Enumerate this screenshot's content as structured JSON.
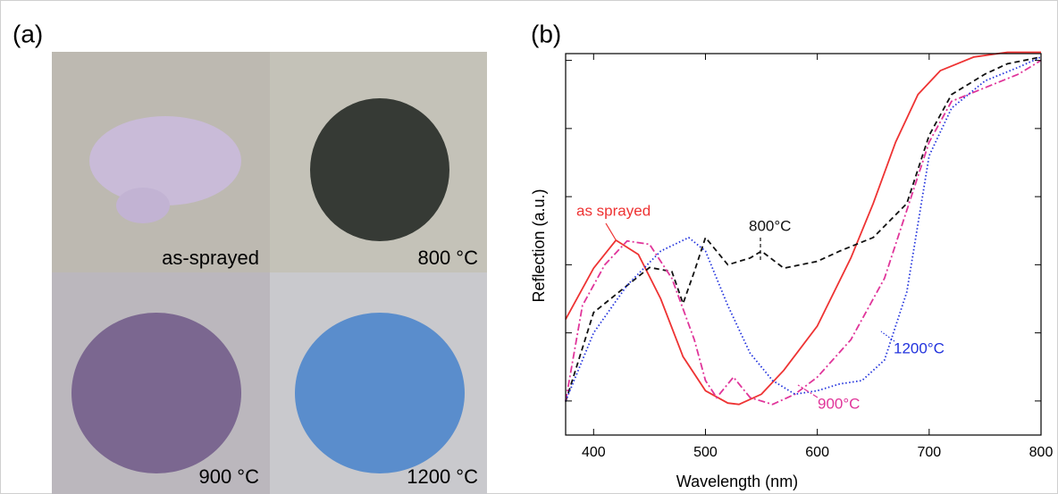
{
  "panel_labels": [
    "(a)",
    "(b)"
  ],
  "photos": [
    {
      "label": "as-sprayed"
    },
    {
      "label": "800 °C"
    },
    {
      "label": "900 °C"
    },
    {
      "label": "1200 °C"
    }
  ],
  "chart_data": {
    "type": "line",
    "x_label": "Wavelength (nm)",
    "y_label": "Reflection (a.u.)",
    "xlim": [
      375,
      800
    ],
    "xticks": [
      400,
      500,
      600,
      700,
      800
    ],
    "ylim": [
      0.5,
      6.1
    ],
    "yticks": [
      1,
      2,
      3,
      4,
      5,
      6
    ],
    "series": [
      {
        "name": "as sprayed",
        "color": "#ee3333",
        "linestyle": "solid",
        "x": [
          375,
          400,
          420,
          440,
          460,
          480,
          500,
          520,
          530,
          550,
          570,
          600,
          630,
          650,
          670,
          690,
          710,
          740,
          770,
          800
        ],
        "values": [
          2.2,
          2.95,
          3.36,
          3.15,
          2.5,
          1.65,
          1.15,
          0.97,
          0.95,
          1.1,
          1.45,
          2.1,
          3.1,
          3.9,
          4.8,
          5.5,
          5.85,
          6.05,
          6.12,
          6.12
        ]
      },
      {
        "name": "800°C",
        "color": "#111111",
        "linestyle": "dashed",
        "x": [
          375,
          400,
          450,
          470,
          480,
          490,
          500,
          520,
          540,
          550,
          570,
          600,
          620,
          650,
          680,
          700,
          720,
          750,
          770,
          800
        ],
        "values": [
          0.99,
          2.3,
          2.96,
          2.9,
          2.43,
          2.9,
          3.4,
          3.0,
          3.1,
          3.2,
          2.95,
          3.05,
          3.2,
          3.4,
          3.9,
          4.9,
          5.5,
          5.8,
          5.95,
          6.05
        ]
      },
      {
        "name": "900°C",
        "color": "#e0359a",
        "linestyle": "dashdot",
        "x": [
          375,
          390,
          410,
          430,
          450,
          470,
          490,
          500,
          510,
          525,
          540,
          560,
          580,
          600,
          630,
          660,
          680,
          700,
          720,
          750,
          780,
          800
        ],
        "values": [
          1.0,
          2.4,
          3.0,
          3.35,
          3.3,
          2.8,
          1.9,
          1.3,
          1.05,
          1.35,
          1.05,
          0.95,
          1.1,
          1.35,
          1.9,
          2.8,
          3.8,
          4.8,
          5.4,
          5.6,
          5.8,
          6.0
        ]
      },
      {
        "name": "1200°C",
        "color": "#2233dd",
        "linestyle": "dotted",
        "x": [
          375,
          400,
          430,
          460,
          485,
          500,
          520,
          540,
          560,
          580,
          600,
          620,
          640,
          660,
          680,
          690,
          700,
          720,
          750,
          780,
          800
        ],
        "values": [
          1.0,
          2.0,
          2.7,
          3.2,
          3.4,
          3.2,
          2.4,
          1.7,
          1.3,
          1.1,
          1.15,
          1.25,
          1.3,
          1.6,
          2.6,
          3.6,
          4.6,
          5.3,
          5.7,
          5.9,
          6.05
        ]
      }
    ]
  }
}
